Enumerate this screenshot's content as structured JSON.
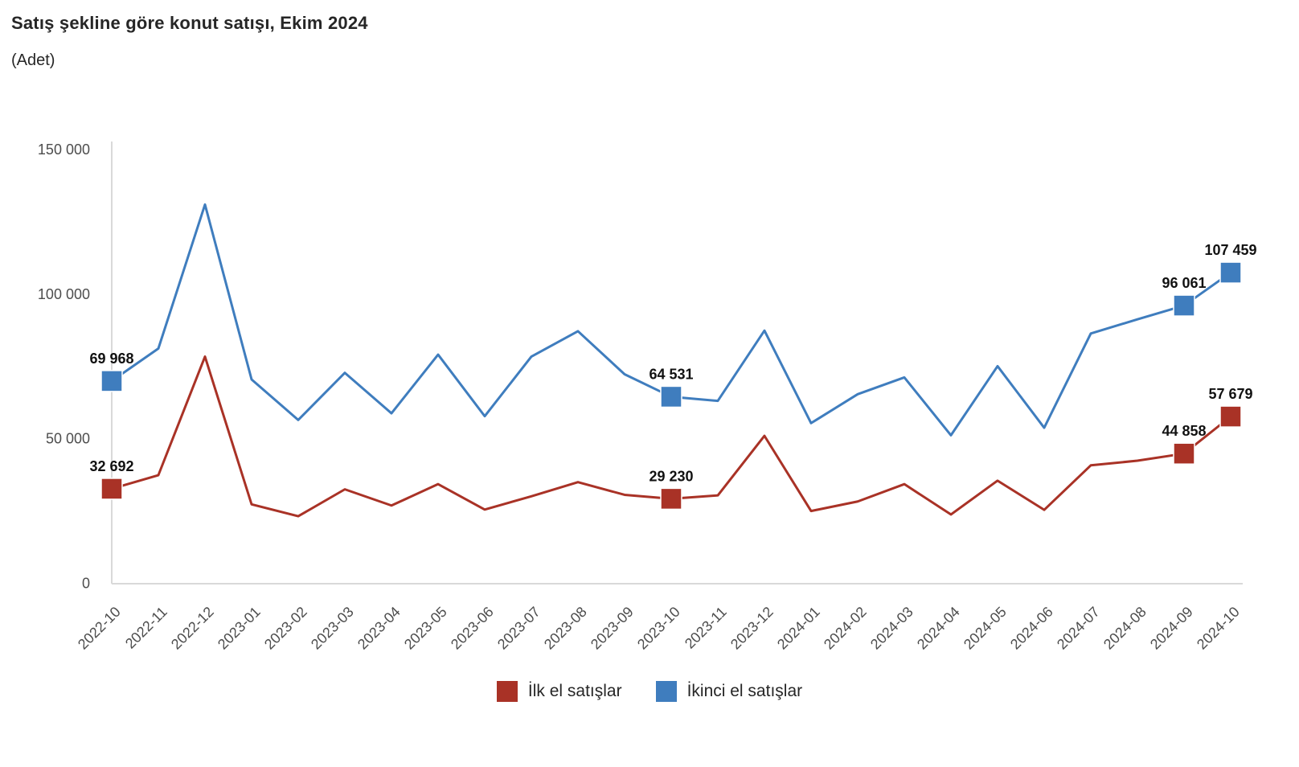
{
  "chart_data": {
    "type": "line",
    "title": "Satış şekline göre konut satışı, Ekim 2024",
    "subtitle": "(Adet)",
    "categories": [
      "2022-10",
      "2022-11",
      "2022-12",
      "2023-01",
      "2023-02",
      "2023-03",
      "2023-04",
      "2023-05",
      "2023-06",
      "2023-07",
      "2023-08",
      "2023-09",
      "2023-10",
      "2023-11",
      "2023-12",
      "2024-01",
      "2024-02",
      "2024-03",
      "2024-04",
      "2024-05",
      "2024-06",
      "2024-07",
      "2024-08",
      "2024-09",
      "2024-10"
    ],
    "series": [
      {
        "name": "İlk el satışlar",
        "color": "#A93226",
        "values": [
          32692,
          37400,
          78400,
          27300,
          23200,
          32500,
          26900,
          34300,
          25500,
          30100,
          35000,
          30600,
          29230,
          30400,
          51000,
          25000,
          28300,
          34300,
          23800,
          35500,
          25400,
          40800,
          42400,
          44858,
          57679
        ]
      },
      {
        "name": "İkinci el satışlar",
        "color": "#3F7DBE",
        "values": [
          69968,
          81200,
          131000,
          70500,
          56500,
          72800,
          58800,
          79100,
          57800,
          78400,
          87200,
          72300,
          64531,
          63100,
          87400,
          55400,
          65400,
          71200,
          51200,
          75100,
          53800,
          86400,
          91300,
          96061,
          107459
        ]
      }
    ],
    "ylim": [
      0,
      150000
    ],
    "yticks": [
      0,
      50000,
      100000,
      150000
    ],
    "ytick_labels": [
      "0",
      "50 000",
      "100 000",
      "150 000"
    ],
    "annotations": [
      {
        "series": 1,
        "index": 0,
        "text": "69 968"
      },
      {
        "series": 0,
        "index": 0,
        "text": "32 692"
      },
      {
        "series": 1,
        "index": 12,
        "text": "64 531"
      },
      {
        "series": 0,
        "index": 12,
        "text": "29 230"
      },
      {
        "series": 1,
        "index": 23,
        "text": "96 061"
      },
      {
        "series": 0,
        "index": 23,
        "text": "44 858"
      },
      {
        "series": 1,
        "index": 24,
        "text": "107 459"
      },
      {
        "series": 0,
        "index": 24,
        "text": "57 679"
      }
    ],
    "grid": false,
    "legend_position": "bottom"
  }
}
